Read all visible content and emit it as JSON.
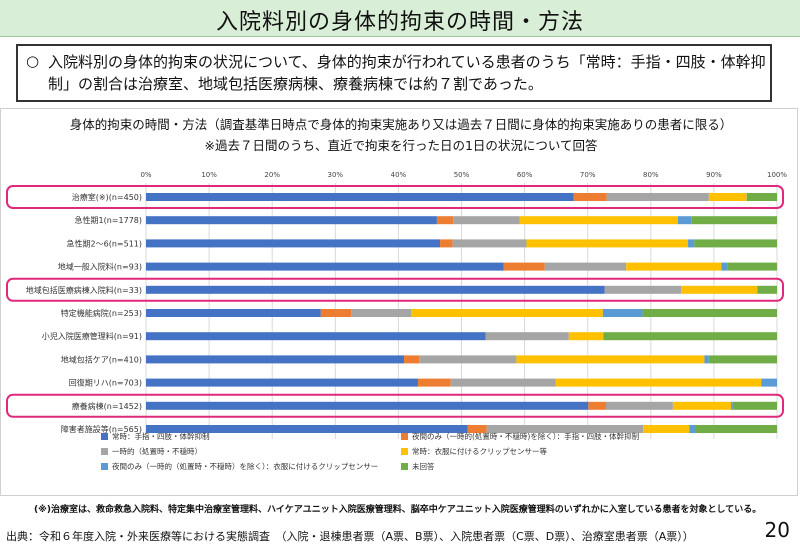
{
  "page": {
    "title": "入院料別の身体的拘束の時間・方法",
    "summary_bullet": "○",
    "summary_text": "入院料別の身体的拘束の状況について、身体的拘束が行われている患者のうち「常時：手指・四肢・体幹抑制」の割合は治療室、地域包括医療病棟、療養病棟では約７割であった。",
    "footnote": "(※)治療室は、救命救急入院料、特定集中治療室管理料、ハイケアユニット入院医療管理料、脳卒中ケアユニット入院医療管理料のいずれかに入室している患者を対象としている。",
    "source": "出典：令和６年度入院・外来医療等における実態調査　（入院・退棟患者票（A票、B票）、入院患者票（C票、D票）、治療室患者票（A票））",
    "page_number": "20"
  },
  "colors": {
    "highlight": "#e0297a",
    "grid": "#d9d9d9"
  },
  "chart_data": {
    "type": "bar",
    "orientation": "horizontal-stacked-100",
    "title": "身体的拘束の時間・方法（調査基準日時点で身体的拘束実施あり又は過去７日間に身体的拘束実施ありの患者に限る）",
    "subtitle": "※過去７日間のうち、直近で拘束を行った日の1日の状況について回答",
    "xlim": [
      0,
      100
    ],
    "x_ticks": [
      "0%",
      "10%",
      "20%",
      "30%",
      "40%",
      "50%",
      "60%",
      "70%",
      "80%",
      "90%",
      "100%"
    ],
    "categories": [
      "治療室(※)(n=450)",
      "急性期1(n=1778)",
      "急性期2～6(n=511)",
      "地域一般入院料(n=93)",
      "地域包括医療病棟入院料(n=33)",
      "特定機能病院(n=253)",
      "小児入院医療管理料(n=91)",
      "地域包括ケア(n=410)",
      "回復期リハ(n=703)",
      "療養病棟(n=1452)",
      "障害者施設等(n=565)"
    ],
    "highlighted": [
      "治療室(※)(n=450)",
      "地域包括医療病棟入院料(n=33)",
      "療養病棟(n=1452)"
    ],
    "series": [
      {
        "name": "常時：手指・四肢・体幹抑制",
        "color": "#4472c4",
        "values": [
          67.8,
          46.1,
          46.6,
          56.7,
          72.7,
          27.7,
          53.8,
          40.9,
          43.1,
          70.1,
          51.0
        ]
      },
      {
        "name": "夜間のみ（一時的(処置時・不穏時)を除く）：手指・四肢・体幹抑制",
        "color": "#ed7d31",
        "values": [
          5.2,
          2.6,
          2.0,
          6.5,
          0.0,
          4.8,
          0.0,
          2.4,
          5.2,
          2.8,
          3.0
        ]
      },
      {
        "name": "一時的（処置時・不穏時）",
        "color": "#a5a5a5",
        "values": [
          16.2,
          10.5,
          11.7,
          12.9,
          12.1,
          9.5,
          13.2,
          15.4,
          16.6,
          10.6,
          24.8
        ]
      },
      {
        "name": "常時：衣服に付けるクリップセンサー等",
        "color": "#ffc000",
        "values": [
          6.0,
          25.1,
          25.6,
          15.1,
          12.1,
          30.4,
          5.5,
          29.8,
          32.6,
          9.2,
          7.3
        ]
      },
      {
        "name": "夜間のみ（一時的（処置時・不穏時）を除く）：衣服に付けるクリップセンサー",
        "color": "#5b9bd5",
        "values": [
          0.2,
          2.2,
          1.0,
          0.9,
          0.0,
          6.3,
          0.0,
          0.7,
          2.5,
          0.3,
          0.9
        ]
      },
      {
        "name": "未回答",
        "color": "#70ad47",
        "values": [
          4.6,
          13.5,
          13.1,
          7.9,
          3.1,
          21.3,
          27.5,
          10.8,
          0.0,
          7.0,
          13.0
        ]
      }
    ]
  }
}
